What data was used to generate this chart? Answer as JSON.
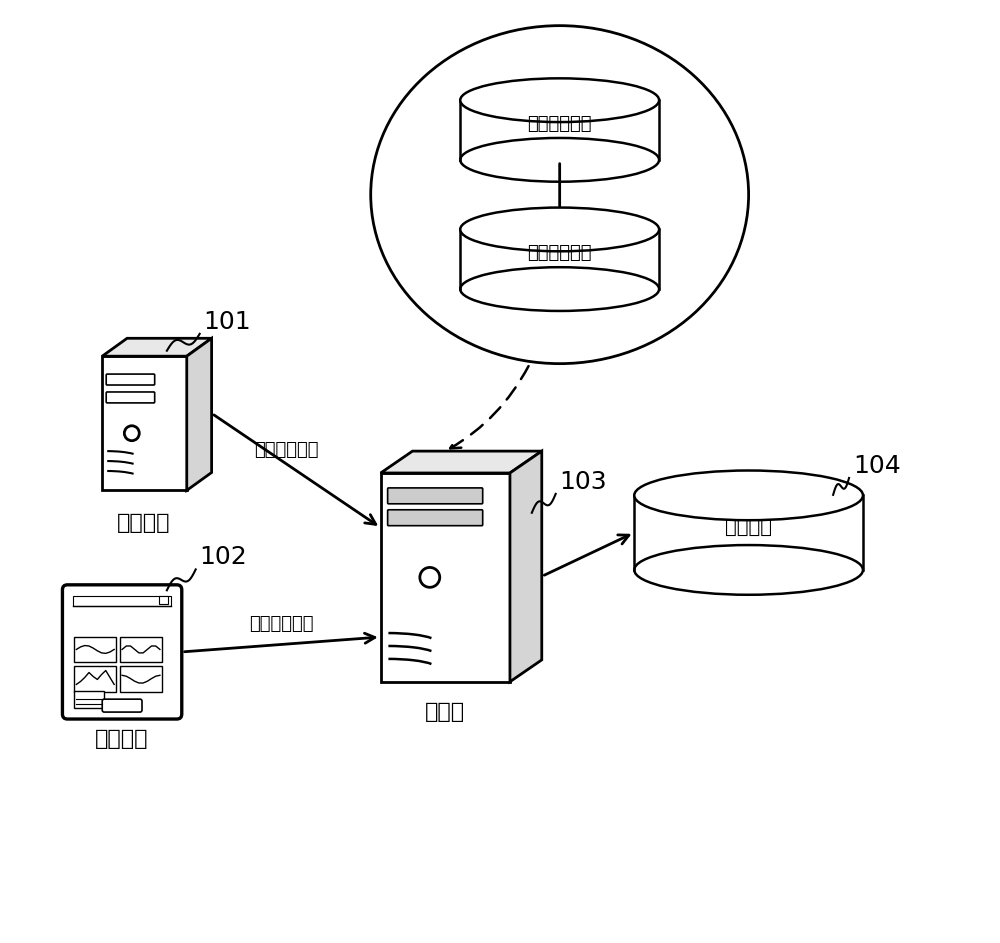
{
  "bg_color": "#ffffff",
  "label_101": "101",
  "label_102": "102",
  "label_103": "103",
  "label_104": "104",
  "text_simulation": "仿真系统",
  "text_user_terminal": "用户终端",
  "text_server": "服务器",
  "text_test_result": "测试结果",
  "text_original_data": "原始仿真数据",
  "text_target_data": "目标仿真数据",
  "arrow_label_1": "原始仿真数据",
  "arrow_label_2": "目标测试模块",
  "line_color": "#000000",
  "font_size_label": 18,
  "font_size_chinese": 16,
  "font_size_small": 13
}
